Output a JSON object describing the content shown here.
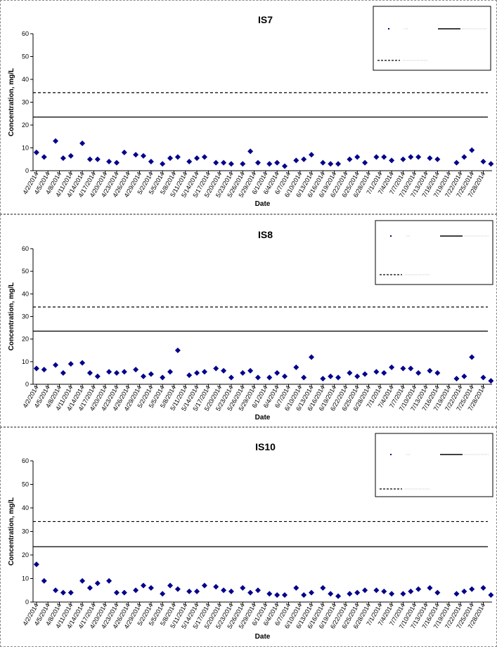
{
  "chart_data": [
    {
      "type": "scatter",
      "title": "IS7",
      "xlabel": "Date",
      "ylabel": "Concentration, mg/L",
      "ylim": [
        0,
        60
      ],
      "yticks": [
        0,
        10,
        20,
        30,
        40,
        50,
        60
      ],
      "x_tick_labels": [
        "4/2/2014",
        "4/5/2014",
        "4/8/2014",
        "4/11/2014",
        "4/14/2014",
        "4/17/2014",
        "4/20/2014",
        "4/23/2014",
        "4/26/2014",
        "4/29/2014",
        "5/2/2014",
        "5/5/2014",
        "5/8/2014",
        "5/11/2014",
        "5/14/2014",
        "5/17/2014",
        "5/20/2014",
        "5/23/2014",
        "5/26/2014",
        "5/29/2014",
        "6/1/2014",
        "6/4/2014",
        "6/7/2014",
        "6/10/2014",
        "6/13/2014",
        "6/16/2014",
        "6/19/2014",
        "6/22/2014",
        "6/25/2014",
        "6/28/2014",
        "7/1/2014",
        "7/4/2014",
        "7/7/2014",
        "7/10/2014",
        "7/13/2014",
        "7/16/2014",
        "7/19/2014",
        "7/22/2014",
        "7/25/2014",
        "7/28/2014"
      ],
      "grid": false,
      "legend_position": "top-right",
      "series": [
        {
          "kind": "points",
          "color": "#00008b",
          "x": [
            "4/2/2014",
            "4/4/2014",
            "4/7/2014",
            "4/9/2014",
            "4/11/2014",
            "4/14/2014",
            "4/16/2014",
            "4/18/2014",
            "4/21/2014",
            "4/23/2014",
            "4/25/2014",
            "4/28/2014",
            "4/30/2014",
            "5/2/2014",
            "5/5/2014",
            "5/7/2014",
            "5/9/2014",
            "5/12/2014",
            "5/14/2014",
            "5/16/2014",
            "5/19/2014",
            "5/21/2014",
            "5/23/2014",
            "5/26/2014",
            "5/28/2014",
            "5/30/2014",
            "6/2/2014",
            "6/4/2014",
            "6/6/2014",
            "6/9/2014",
            "6/11/2014",
            "6/13/2014",
            "6/16/2014",
            "6/18/2014",
            "6/20/2014",
            "6/23/2014",
            "6/25/2014",
            "6/27/2014",
            "6/30/2014",
            "7/2/2014",
            "7/4/2014",
            "7/7/2014",
            "7/9/2014",
            "7/11/2014",
            "7/14/2014",
            "7/16/2014",
            "7/21/2014",
            "7/23/2014",
            "7/25/2014",
            "7/28/2014",
            "7/30/2014"
          ],
          "y": [
            8,
            6,
            13,
            5.5,
            6.5,
            12,
            5,
            5,
            4,
            3.5,
            8,
            7,
            6.5,
            4,
            3,
            5.5,
            6,
            4,
            5.5,
            6,
            3.5,
            3.5,
            3,
            3,
            8.5,
            3.5,
            3,
            3.5,
            2,
            4.5,
            5,
            7,
            3.5,
            3,
            3,
            5,
            6,
            3.5,
            6,
            6,
            4.5,
            5,
            6,
            6,
            5.5,
            5,
            3.5,
            6,
            9,
            4,
            3
          ]
        },
        {
          "kind": "line",
          "style": "solid",
          "y": 23.5
        },
        {
          "kind": "line",
          "style": "dashed",
          "y": 34.2
        }
      ]
    },
    {
      "type": "scatter",
      "title": "IS8",
      "xlabel": "Date",
      "ylabel": "Concentration, mg/L",
      "ylim": [
        0,
        60
      ],
      "yticks": [
        0,
        10,
        20,
        30,
        40,
        50,
        60
      ],
      "x_tick_labels": [
        "4/2/2014",
        "4/5/2014",
        "4/8/2014",
        "4/11/2014",
        "4/14/2014",
        "4/17/2014",
        "4/20/2014",
        "4/23/2014",
        "4/26/2014",
        "4/29/2014",
        "5/2/2014",
        "5/5/2014",
        "5/8/2014",
        "5/11/2014",
        "5/14/2014",
        "5/17/2014",
        "5/20/2014",
        "5/23/2014",
        "5/26/2014",
        "5/29/2014",
        "6/1/2014",
        "6/4/2014",
        "6/7/2014",
        "6/10/2014",
        "6/13/2014",
        "6/16/2014",
        "6/19/2014",
        "6/22/2014",
        "6/25/2014",
        "6/28/2014",
        "7/1/2014",
        "7/4/2014",
        "7/7/2014",
        "7/10/2014",
        "7/13/2014",
        "7/16/2014",
        "7/19/2014",
        "7/22/2014",
        "7/25/2014",
        "7/28/2014"
      ],
      "grid": false,
      "legend_position": "top-right",
      "series": [
        {
          "kind": "points",
          "color": "#00008b",
          "x": [
            "4/2/2014",
            "4/4/2014",
            "4/7/2014",
            "4/9/2014",
            "4/11/2014",
            "4/14/2014",
            "4/16/2014",
            "4/18/2014",
            "4/21/2014",
            "4/23/2014",
            "4/25/2014",
            "4/28/2014",
            "4/30/2014",
            "5/2/2014",
            "5/5/2014",
            "5/7/2014",
            "5/9/2014",
            "5/12/2014",
            "5/14/2014",
            "5/16/2014",
            "5/19/2014",
            "5/21/2014",
            "5/23/2014",
            "5/26/2014",
            "5/28/2014",
            "5/30/2014",
            "6/2/2014",
            "6/4/2014",
            "6/6/2014",
            "6/9/2014",
            "6/11/2014",
            "6/13/2014",
            "6/16/2014",
            "6/18/2014",
            "6/20/2014",
            "6/23/2014",
            "6/25/2014",
            "6/27/2014",
            "6/30/2014",
            "7/2/2014",
            "7/4/2014",
            "7/7/2014",
            "7/9/2014",
            "7/11/2014",
            "7/14/2014",
            "7/16/2014",
            "7/21/2014",
            "7/23/2014",
            "7/25/2014",
            "7/28/2014",
            "7/30/2014"
          ],
          "y": [
            7,
            6.5,
            8.5,
            5,
            9,
            9.5,
            5,
            3.5,
            5.5,
            5,
            5.5,
            6.5,
            3.5,
            4.5,
            3,
            5.5,
            15,
            4,
            5,
            5.5,
            7,
            6,
            3,
            5,
            6,
            3,
            3,
            5,
            3.5,
            7.5,
            3,
            12,
            2.5,
            3.5,
            3,
            5,
            3.5,
            4.5,
            5.5,
            5,
            7.5,
            7,
            7,
            5,
            6,
            5,
            2.5,
            3.5,
            12,
            3,
            1.5
          ]
        },
        {
          "kind": "line",
          "style": "solid",
          "y": 23.5
        },
        {
          "kind": "line",
          "style": "dashed",
          "y": 34.2
        }
      ]
    },
    {
      "type": "scatter",
      "title": "IS10",
      "xlabel": "Date",
      "ylabel": "Concentration, mg/L",
      "ylim": [
        0,
        60
      ],
      "yticks": [
        0,
        10,
        20,
        30,
        40,
        50,
        60
      ],
      "x_tick_labels": [
        "4/2/2014",
        "4/5/2014",
        "4/8/2014",
        "4/11/2014",
        "4/14/2014",
        "4/17/2014",
        "4/20/2014",
        "4/23/2014",
        "4/26/2014",
        "4/29/2014",
        "5/2/2014",
        "5/5/2014",
        "5/8/2014",
        "5/11/2014",
        "5/14/2014",
        "5/17/2014",
        "5/20/2014",
        "5/23/2014",
        "5/26/2014",
        "5/29/2014",
        "6/1/2014",
        "6/4/2014",
        "6/7/2014",
        "6/10/2014",
        "6/13/2014",
        "6/16/2014",
        "6/19/2014",
        "6/22/2014",
        "6/25/2014",
        "6/28/2014",
        "7/1/2014",
        "7/4/2014",
        "7/7/2014",
        "7/10/2014",
        "7/13/2014",
        "7/16/2014",
        "7/19/2014",
        "7/22/2014",
        "7/25/2014",
        "7/28/2014"
      ],
      "grid": false,
      "legend_position": "top-right",
      "series": [
        {
          "kind": "points",
          "color": "#00008b",
          "x": [
            "4/2/2014",
            "4/4/2014",
            "4/7/2014",
            "4/9/2014",
            "4/11/2014",
            "4/14/2014",
            "4/16/2014",
            "4/18/2014",
            "4/21/2014",
            "4/23/2014",
            "4/25/2014",
            "4/28/2014",
            "4/30/2014",
            "5/2/2014",
            "5/5/2014",
            "5/7/2014",
            "5/9/2014",
            "5/12/2014",
            "5/14/2014",
            "5/16/2014",
            "5/19/2014",
            "5/21/2014",
            "5/23/2014",
            "5/26/2014",
            "5/28/2014",
            "5/30/2014",
            "6/2/2014",
            "6/4/2014",
            "6/6/2014",
            "6/9/2014",
            "6/11/2014",
            "6/13/2014",
            "6/16/2014",
            "6/18/2014",
            "6/20/2014",
            "6/23/2014",
            "6/25/2014",
            "6/27/2014",
            "6/30/2014",
            "7/2/2014",
            "7/4/2014",
            "7/7/2014",
            "7/9/2014",
            "7/11/2014",
            "7/14/2014",
            "7/16/2014",
            "7/21/2014",
            "7/23/2014",
            "7/25/2014",
            "7/28/2014",
            "7/30/2014"
          ],
          "y": [
            16,
            9,
            5,
            4,
            4,
            9,
            6,
            8,
            9,
            4,
            4,
            5,
            7,
            6,
            3.5,
            7,
            5.5,
            4.5,
            4.5,
            7,
            6.5,
            5,
            4.5,
            6,
            4,
            5,
            3.5,
            3,
            3,
            6,
            3,
            4,
            6,
            3.5,
            2.5,
            3.5,
            4,
            5,
            5,
            4.5,
            3.5,
            3.5,
            4.5,
            5.5,
            6,
            4,
            3.5,
            4.5,
            5.5,
            6,
            3
          ]
        },
        {
          "kind": "line",
          "style": "solid",
          "y": 23.5
        },
        {
          "kind": "line",
          "style": "dashed",
          "y": 34.2
        }
      ]
    }
  ]
}
